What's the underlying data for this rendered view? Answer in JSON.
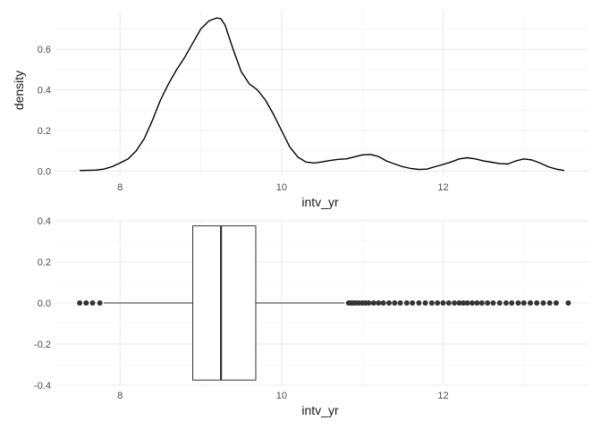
{
  "chart_data": [
    {
      "type": "line",
      "subtype": "density",
      "title": "",
      "xlabel": "intv_yr",
      "ylabel": "density",
      "xlim": [
        7.2,
        13.8
      ],
      "ylim": [
        -0.02,
        0.79
      ],
      "x_ticks": [
        8,
        10,
        12
      ],
      "x_tick_labels": [
        "8",
        "10",
        "12"
      ],
      "y_ticks": [
        0.0,
        0.2,
        0.4,
        0.6
      ],
      "y_tick_labels": [
        "0.0",
        "0.2",
        "0.4",
        "0.6"
      ],
      "grid": true,
      "legend": "none",
      "line_color": "#000000",
      "series": [
        {
          "x": [
            7.5,
            7.7,
            7.8,
            7.9,
            8.0,
            8.1,
            8.2,
            8.3,
            8.4,
            8.5,
            8.6,
            8.7,
            8.8,
            8.9,
            9.0,
            9.1,
            9.2,
            9.25,
            9.3,
            9.4,
            9.5,
            9.6,
            9.7,
            9.8,
            9.9,
            10.0,
            10.1,
            10.2,
            10.3,
            10.4,
            10.5,
            10.6,
            10.7,
            10.8,
            10.9,
            11.0,
            11.1,
            11.2,
            11.3,
            11.4,
            11.5,
            11.6,
            11.7,
            11.8,
            11.9,
            12.0,
            12.1,
            12.2,
            12.3,
            12.4,
            12.5,
            12.6,
            12.7,
            12.8,
            12.9,
            13.0,
            13.1,
            13.2,
            13.3,
            13.4,
            13.5
          ],
          "y": [
            0.003,
            0.005,
            0.01,
            0.022,
            0.04,
            0.06,
            0.1,
            0.16,
            0.25,
            0.35,
            0.43,
            0.5,
            0.56,
            0.63,
            0.7,
            0.74,
            0.755,
            0.75,
            0.72,
            0.6,
            0.49,
            0.43,
            0.4,
            0.35,
            0.28,
            0.2,
            0.12,
            0.07,
            0.045,
            0.04,
            0.045,
            0.052,
            0.058,
            0.06,
            0.07,
            0.08,
            0.082,
            0.072,
            0.05,
            0.035,
            0.022,
            0.013,
            0.008,
            0.01,
            0.022,
            0.033,
            0.045,
            0.06,
            0.066,
            0.06,
            0.05,
            0.044,
            0.037,
            0.035,
            0.05,
            0.06,
            0.055,
            0.04,
            0.022,
            0.01,
            0.003
          ]
        }
      ]
    },
    {
      "type": "boxplot",
      "title": "",
      "xlabel": "intv_yr",
      "ylabel": "",
      "xlim": [
        7.2,
        13.8
      ],
      "ylim": [
        -0.4,
        0.4
      ],
      "x_ticks": [
        8,
        10,
        12
      ],
      "x_tick_labels": [
        "8",
        "10",
        "12"
      ],
      "y_ticks": [
        -0.4,
        -0.2,
        0.0,
        0.2,
        0.4
      ],
      "y_tick_labels": [
        "-0.4",
        "-0.2",
        "0.0",
        "0.2",
        "0.4"
      ],
      "grid": true,
      "legend": "none",
      "box": {
        "lower_whisker": 7.8,
        "q1": 8.9,
        "median": 9.25,
        "q3": 9.68,
        "upper_whisker": 10.78,
        "box_ymin": -0.375,
        "box_ymax": 0.375
      },
      "outliers": [
        7.5,
        7.58,
        7.66,
        7.75,
        10.83,
        10.86,
        10.89,
        10.92,
        10.96,
        11.0,
        11.04,
        11.08,
        11.14,
        11.2,
        11.26,
        11.33,
        11.4,
        11.47,
        11.55,
        11.62,
        11.7,
        11.78,
        11.86,
        11.93,
        12.0,
        12.07,
        12.14,
        12.2,
        12.25,
        12.3,
        12.36,
        12.42,
        12.48,
        12.55,
        12.62,
        12.7,
        12.78,
        12.85,
        12.93,
        13.0,
        13.08,
        13.16,
        13.24,
        13.32,
        13.4,
        13.55
      ]
    }
  ]
}
